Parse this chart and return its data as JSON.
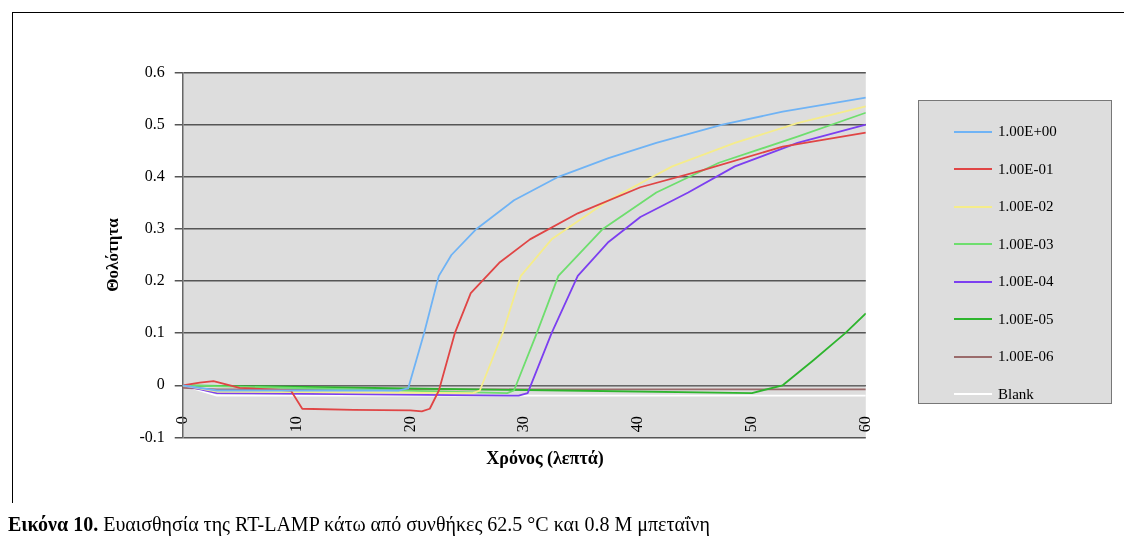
{
  "chart_data": {
    "type": "line",
    "xlabel": "Χρόνος (λεπτά)",
    "ylabel": "Θολότητα",
    "xlim": [
      0,
      60
    ],
    "xticks": [
      0,
      10,
      20,
      30,
      40,
      50,
      60
    ],
    "ylim": [
      -0.1,
      0.6
    ],
    "yticks": [
      -0.1,
      0,
      0.1,
      0.2,
      0.3,
      0.4,
      0.5,
      0.6
    ],
    "grid": "y",
    "legend": "right",
    "marker": "none",
    "line_style": "solid",
    "annotations": [
      "Εικόνα 10. Ευαισθησία της RT-LAMP κάτω από συνθήκες 62.5 °C και 0.8 M μπεταΐνη"
    ],
    "series": [
      {
        "name": "1.00E+00",
        "color": "#6fb3f5",
        "x": [
          0,
          3,
          10,
          19,
          19.8,
          21.2,
          22.5,
          23.6,
          25.8,
          29.1,
          33,
          37.4,
          41.6,
          47.4,
          52.7,
          60
        ],
        "values": [
          0,
          -0.01,
          -0.01,
          -0.01,
          -0.006,
          0.1,
          0.21,
          0.25,
          0.3,
          0.355,
          0.4,
          0.436,
          0.465,
          0.5,
          0.525,
          0.552
        ]
      },
      {
        "name": "1.00E-01",
        "color": "#e04545",
        "x": [
          0,
          1.5,
          2.7,
          5,
          9.5,
          10.5,
          15,
          20,
          21,
          21.7,
          22.5,
          23.9,
          25.3,
          27.8,
          30.5,
          34.7,
          40.2,
          45.7,
          52.7,
          60
        ],
        "values": [
          0,
          0.005,
          0.008,
          -0.005,
          -0.01,
          -0.045,
          -0.047,
          -0.048,
          -0.05,
          -0.045,
          -0.01,
          0.1,
          0.177,
          0.235,
          0.28,
          0.33,
          0.38,
          0.413,
          0.458,
          0.485
        ]
      },
      {
        "name": "1.00E-02",
        "color": "#f5ec8a",
        "x": [
          0,
          3,
          25.5,
          26.1,
          28.1,
          29.7,
          32.4,
          37.4,
          43,
          48.5,
          54,
          60
        ],
        "values": [
          0,
          -0.012,
          -0.015,
          -0.01,
          0.1,
          0.21,
          0.28,
          0.355,
          0.42,
          0.465,
          0.503,
          0.535
        ]
      },
      {
        "name": "1.00E-03",
        "color": "#6ede6e",
        "x": [
          0,
          28.5,
          29.1,
          31.1,
          33,
          36.9,
          41.6,
          47.1,
          54,
          60
        ],
        "values": [
          0,
          -0.015,
          -0.01,
          0.1,
          0.21,
          0.3,
          0.37,
          0.427,
          0.477,
          0.523
        ]
      },
      {
        "name": "1.00E-04",
        "color": "#7c3ff0",
        "x": [
          0,
          3,
          29.5,
          30.3,
          32.4,
          34.7,
          37.4,
          40.2,
          44.4,
          48.5,
          54,
          60
        ],
        "values": [
          0,
          -0.015,
          -0.02,
          -0.015,
          0.1,
          0.21,
          0.275,
          0.323,
          0.37,
          0.42,
          0.465,
          0.5
        ]
      },
      {
        "name": "1.00E-05",
        "color": "#2db52d",
        "x": [
          0,
          50,
          52.7,
          55.4,
          58.2,
          60
        ],
        "values": [
          0,
          -0.015,
          0,
          0.048,
          0.1,
          0.138
        ]
      },
      {
        "name": "1.00E-06",
        "color": "#9a6b6b",
        "x": [
          0,
          3,
          60
        ],
        "values": [
          -0.005,
          -0.008,
          -0.008
        ]
      },
      {
        "name": "Blank",
        "color": "#ffffff",
        "x": [
          0,
          3,
          60
        ],
        "values": [
          0,
          -0.02,
          -0.02
        ]
      }
    ]
  }
}
